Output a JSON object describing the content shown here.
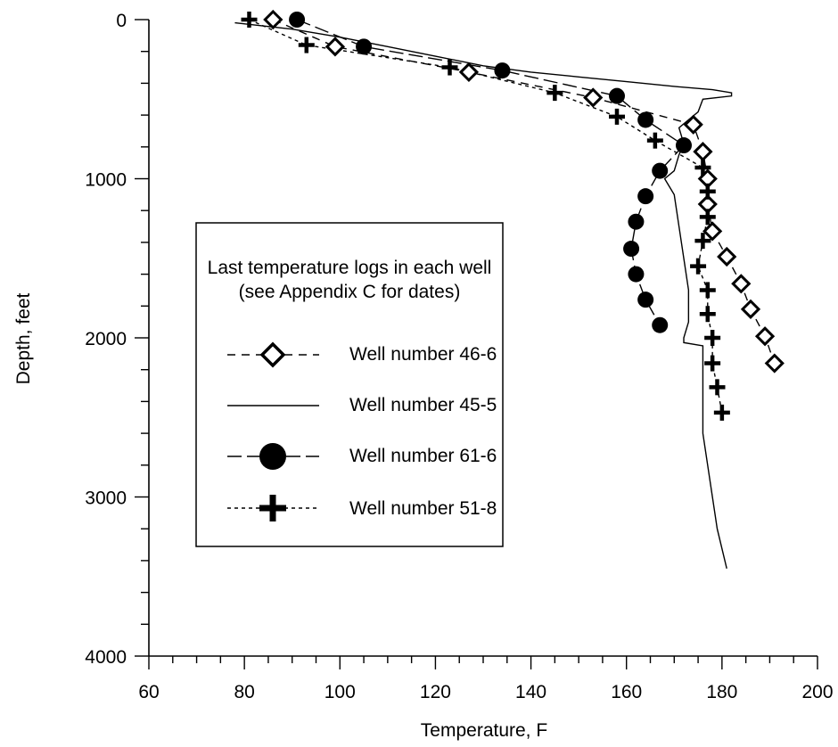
{
  "chart_data": {
    "type": "scatter",
    "title": "",
    "xlabel": "Temperature, F",
    "ylabel": "Depth, feet",
    "xlim": [
      60,
      200
    ],
    "ylim": [
      0,
      4000
    ],
    "y_inverted": true,
    "xticks": [
      60,
      80,
      100,
      120,
      140,
      160,
      180,
      200
    ],
    "yticks": [
      0,
      1000,
      2000,
      3000,
      4000
    ],
    "grid": false,
    "legend": {
      "placement": "center-left",
      "title_lines": [
        "Last temperature logs in each well",
        "(see Appendix C for dates)"
      ]
    },
    "series": [
      {
        "name": "Well number 46-6",
        "marker": "open-diamond",
        "line": "dashed",
        "color": "#000000",
        "points": [
          [
            86,
            0
          ],
          [
            99,
            170
          ],
          [
            127,
            330
          ],
          [
            153,
            490
          ],
          [
            174,
            660
          ],
          [
            176,
            830
          ],
          [
            177,
            1000
          ],
          [
            177,
            1160
          ],
          [
            178,
            1330
          ],
          [
            181,
            1490
          ],
          [
            184,
            1660
          ],
          [
            186,
            1820
          ],
          [
            189,
            1990
          ],
          [
            191,
            2160
          ]
        ]
      },
      {
        "name": "Well number 45-5",
        "marker": "none",
        "line": "solid",
        "color": "#000000",
        "points": [
          [
            78,
            20
          ],
          [
            90,
            60
          ],
          [
            100,
            110
          ],
          [
            110,
            170
          ],
          [
            120,
            230
          ],
          [
            130,
            290
          ],
          [
            140,
            330
          ],
          [
            150,
            360
          ],
          [
            160,
            390
          ],
          [
            170,
            420
          ],
          [
            178,
            440
          ],
          [
            182,
            460
          ],
          [
            182,
            480
          ],
          [
            176,
            500
          ],
          [
            175,
            580
          ],
          [
            171,
            680
          ],
          [
            172,
            780
          ],
          [
            171,
            850
          ],
          [
            170,
            950
          ],
          [
            168,
            1000
          ],
          [
            170,
            1100
          ],
          [
            171,
            1300
          ],
          [
            172,
            1500
          ],
          [
            173,
            1700
          ],
          [
            173,
            1900
          ],
          [
            172,
            2000
          ],
          [
            172,
            2030
          ],
          [
            176,
            2050
          ],
          [
            176,
            2200
          ],
          [
            176,
            2400
          ],
          [
            176,
            2600
          ],
          [
            177,
            2800
          ],
          [
            178,
            3000
          ],
          [
            179,
            3200
          ],
          [
            181,
            3450
          ]
        ]
      },
      {
        "name": "Well number 61-6",
        "marker": "filled-circle",
        "line": "long-dash",
        "color": "#000000",
        "points": [
          [
            91,
            0
          ],
          [
            105,
            170
          ],
          [
            134,
            320
          ],
          [
            158,
            480
          ],
          [
            164,
            630
          ],
          [
            172,
            790
          ],
          [
            167,
            950
          ],
          [
            164,
            1110
          ],
          [
            162,
            1270
          ],
          [
            161,
            1440
          ],
          [
            162,
            1600
          ],
          [
            164,
            1760
          ],
          [
            167,
            1920
          ]
        ]
      },
      {
        "name": "Well number 51-8",
        "marker": "plus",
        "line": "dotted",
        "color": "#000000",
        "points": [
          [
            81,
            0
          ],
          [
            93,
            160
          ],
          [
            123,
            300
          ],
          [
            145,
            460
          ],
          [
            158,
            610
          ],
          [
            166,
            760
          ],
          [
            176,
            930
          ],
          [
            177,
            1080
          ],
          [
            177,
            1240
          ],
          [
            176,
            1390
          ],
          [
            175,
            1550
          ],
          [
            177,
            1700
          ],
          [
            177,
            1850
          ],
          [
            178,
            2000
          ],
          [
            178,
            2160
          ],
          [
            179,
            2310
          ],
          [
            180,
            2470
          ]
        ]
      }
    ]
  }
}
